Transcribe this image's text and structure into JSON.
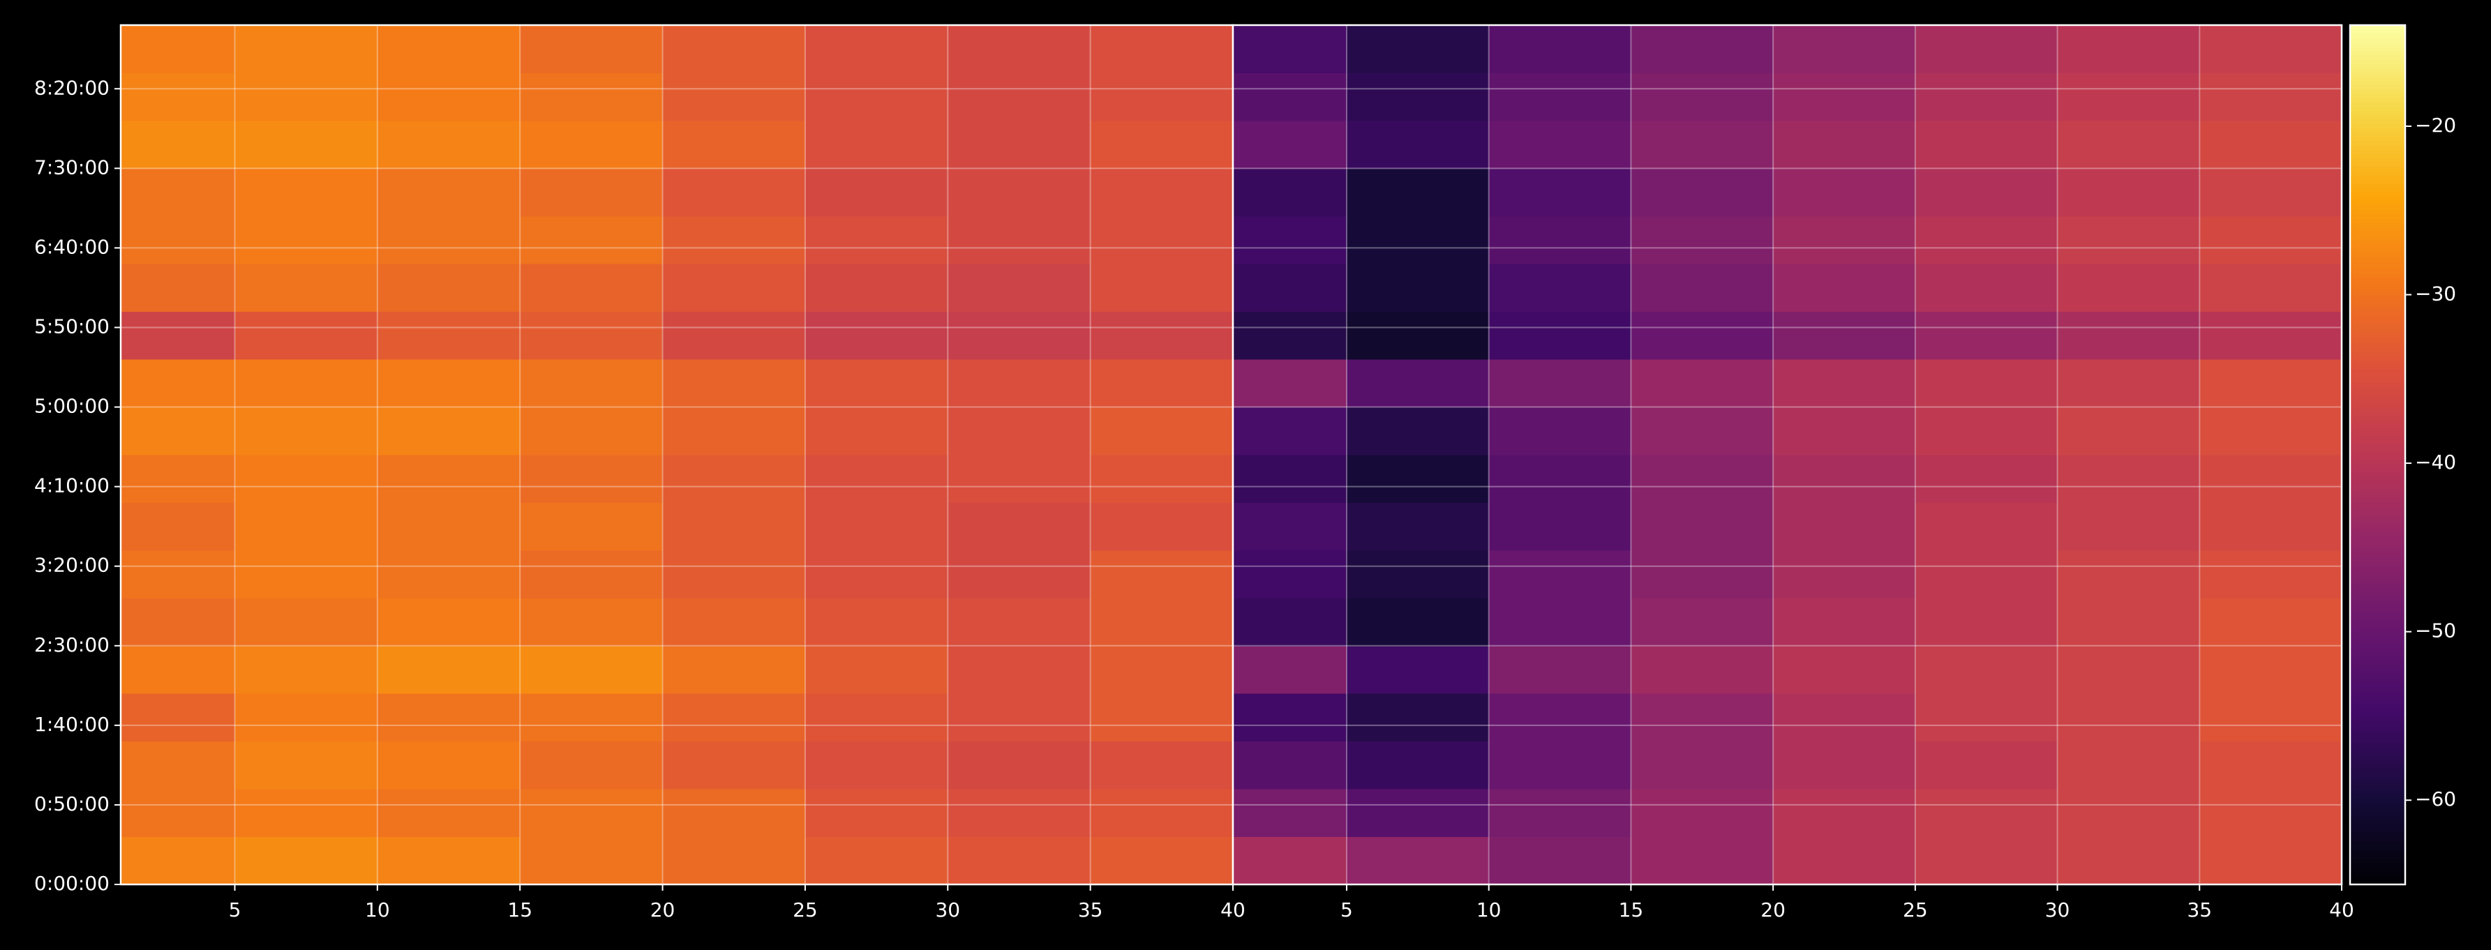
{
  "chart_data": {
    "type": "heatmap",
    "colormap": "inferno",
    "grid": true,
    "xlim": [
      1,
      40
    ],
    "xticks": [
      5,
      10,
      15,
      20,
      25,
      30,
      35,
      40
    ],
    "ylim": [
      0,
      32400
    ],
    "yticks": [
      {
        "value": 0,
        "label": "0:00:00"
      },
      {
        "value": 3000,
        "label": "0:50:00"
      },
      {
        "value": 6000,
        "label": "1:40:00"
      },
      {
        "value": 9000,
        "label": "2:30:00"
      },
      {
        "value": 12000,
        "label": "3:20:00"
      },
      {
        "value": 15000,
        "label": "4:10:00"
      },
      {
        "value": 18000,
        "label": "5:00:00"
      },
      {
        "value": 21000,
        "label": "5:50:00"
      },
      {
        "value": 24000,
        "label": "6:40:00"
      },
      {
        "value": 27000,
        "label": "7:30:00"
      },
      {
        "value": 30000,
        "label": "8:20:00"
      }
    ],
    "xbins": [
      1,
      5,
      10,
      15,
      20,
      25,
      30,
      35,
      40
    ],
    "ybins": [
      0,
      1800,
      3600,
      5400,
      7200,
      9000,
      10800,
      12600,
      14400,
      16200,
      18000,
      19800,
      21600,
      23400,
      25200,
      27000,
      28800,
      30600,
      32400
    ],
    "clim": [
      -65,
      -14
    ],
    "cticks": [
      {
        "value": -20,
        "label": "−20"
      },
      {
        "value": -30,
        "label": "−30"
      },
      {
        "value": -40,
        "label": "−40"
      },
      {
        "value": -50,
        "label": "−50"
      },
      {
        "value": -60,
        "label": "−60"
      }
    ],
    "panels": [
      {
        "values": [
          [
            -28,
            -27,
            -28,
            -30,
            -31,
            -33,
            -34,
            -33
          ],
          [
            -30,
            -29,
            -30,
            -30,
            -31,
            -34,
            -35,
            -34
          ],
          [
            -30,
            -28,
            -29,
            -31,
            -33,
            -35,
            -36,
            -35
          ],
          [
            -32,
            -29,
            -30,
            -30,
            -32,
            -34,
            -35,
            -33
          ],
          [
            -29,
            -28,
            -27,
            -27,
            -30,
            -33,
            -35,
            -33
          ],
          [
            -31,
            -30,
            -29,
            -30,
            -32,
            -34,
            -35,
            -33
          ],
          [
            -30,
            -29,
            -30,
            -31,
            -33,
            -35,
            -36,
            -33
          ],
          [
            -31,
            -29,
            -30,
            -30,
            -33,
            -35,
            -36,
            -35
          ],
          [
            -30,
            -29,
            -30,
            -31,
            -33,
            -35,
            -35,
            -34
          ],
          [
            -28,
            -28,
            -28,
            -30,
            -32,
            -34,
            -35,
            -33
          ],
          [
            -29,
            -29,
            -29,
            -30,
            -32,
            -34,
            -35,
            -34
          ],
          [
            -37,
            -34,
            -33,
            -33,
            -36,
            -38,
            -38,
            -37
          ],
          [
            -31,
            -30,
            -31,
            -32,
            -34,
            -36,
            -37,
            -35
          ],
          [
            -30,
            -29,
            -30,
            -30,
            -33,
            -35,
            -36,
            -35
          ],
          [
            -30,
            -29,
            -30,
            -31,
            -34,
            -36,
            -36,
            -35
          ],
          [
            -27,
            -27,
            -28,
            -29,
            -32,
            -35,
            -36,
            -34
          ],
          [
            -28,
            -28,
            -29,
            -30,
            -33,
            -35,
            -36,
            -35
          ],
          [
            -29,
            -28,
            -29,
            -31,
            -33,
            -35,
            -36,
            -35
          ]
        ]
      },
      {
        "values": [
          [
            -42,
            -45,
            -47,
            -44,
            -40,
            -38,
            -37,
            -35
          ],
          [
            -48,
            -52,
            -48,
            -44,
            -40,
            -38,
            -37,
            -35
          ],
          [
            -52,
            -56,
            -50,
            -45,
            -41,
            -39,
            -37,
            -35
          ],
          [
            -55,
            -58,
            -50,
            -45,
            -41,
            -38,
            -37,
            -34
          ],
          [
            -47,
            -55,
            -47,
            -43,
            -40,
            -38,
            -37,
            -34
          ],
          [
            -56,
            -60,
            -50,
            -45,
            -41,
            -39,
            -37,
            -34
          ],
          [
            -55,
            -59,
            -50,
            -46,
            -42,
            -39,
            -37,
            -35
          ],
          [
            -54,
            -58,
            -52,
            -46,
            -42,
            -39,
            -38,
            -36
          ],
          [
            -56,
            -60,
            -52,
            -46,
            -42,
            -40,
            -38,
            -36
          ],
          [
            -54,
            -58,
            -51,
            -45,
            -41,
            -39,
            -37,
            -35
          ],
          [
            -46,
            -52,
            -48,
            -44,
            -41,
            -39,
            -38,
            -35
          ],
          [
            -58,
            -61,
            -55,
            -50,
            -47,
            -44,
            -42,
            -40
          ],
          [
            -56,
            -60,
            -54,
            -48,
            -44,
            -41,
            -39,
            -37
          ],
          [
            -55,
            -60,
            -52,
            -47,
            -43,
            -40,
            -38,
            -36
          ],
          [
            -56,
            -60,
            -53,
            -48,
            -44,
            -41,
            -39,
            -37
          ],
          [
            -50,
            -56,
            -50,
            -46,
            -43,
            -40,
            -38,
            -36
          ],
          [
            -52,
            -57,
            -51,
            -47,
            -44,
            -41,
            -39,
            -37
          ],
          [
            -54,
            -58,
            -52,
            -48,
            -45,
            -42,
            -40,
            -38
          ]
        ]
      }
    ]
  }
}
